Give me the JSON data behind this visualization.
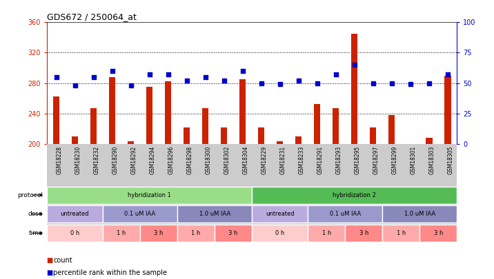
{
  "title": "GDS672 / 250064_at",
  "samples": [
    "GSM18228",
    "GSM18230",
    "GSM18232",
    "GSM18290",
    "GSM18292",
    "GSM18294",
    "GSM18296",
    "GSM18298",
    "GSM18300",
    "GSM18302",
    "GSM18304",
    "GSM18229",
    "GSM18231",
    "GSM18233",
    "GSM18291",
    "GSM18293",
    "GSM18295",
    "GSM18297",
    "GSM18299",
    "GSM18301",
    "GSM18303",
    "GSM18305"
  ],
  "counts": [
    262,
    210,
    247,
    288,
    203,
    275,
    282,
    222,
    247,
    222,
    285,
    222,
    203,
    210,
    252,
    247,
    345,
    222,
    238,
    200,
    208,
    290
  ],
  "percentile": [
    55,
    48,
    55,
    60,
    48,
    57,
    57,
    52,
    55,
    52,
    60,
    50,
    49,
    52,
    50,
    57,
    65,
    50,
    50,
    49,
    50,
    57
  ],
  "ylim_left": [
    200,
    360
  ],
  "ylim_right": [
    0,
    100
  ],
  "yticks_left": [
    200,
    240,
    280,
    320,
    360
  ],
  "yticks_right": [
    0,
    25,
    50,
    75,
    100
  ],
  "grid_values": [
    240,
    280,
    320
  ],
  "bar_color": "#cc2200",
  "dot_color": "#0000cc",
  "bar_bottom": 200,
  "protocol_groups": [
    {
      "label": "hybridization 1",
      "start": 0,
      "end": 11,
      "color": "#99dd88"
    },
    {
      "label": "hybridization 2",
      "start": 11,
      "end": 22,
      "color": "#55bb55"
    }
  ],
  "dose_groups": [
    {
      "label": "untreated",
      "start": 0,
      "end": 3,
      "color": "#bbaadd"
    },
    {
      "label": "0.1 uM IAA",
      "start": 3,
      "end": 7,
      "color": "#9999cc"
    },
    {
      "label": "1.0 uM IAA",
      "start": 7,
      "end": 11,
      "color": "#8888bb"
    },
    {
      "label": "untreated",
      "start": 11,
      "end": 14,
      "color": "#bbaadd"
    },
    {
      "label": "0.1 uM IAA",
      "start": 14,
      "end": 18,
      "color": "#9999cc"
    },
    {
      "label": "1.0 uM IAA",
      "start": 18,
      "end": 22,
      "color": "#8888bb"
    }
  ],
  "time_groups": [
    {
      "label": "0 h",
      "start": 0,
      "end": 3,
      "color": "#ffcccc"
    },
    {
      "label": "1 h",
      "start": 3,
      "end": 5,
      "color": "#ffaaaa"
    },
    {
      "label": "3 h",
      "start": 5,
      "end": 7,
      "color": "#ff8888"
    },
    {
      "label": "1 h",
      "start": 7,
      "end": 9,
      "color": "#ffaaaa"
    },
    {
      "label": "3 h",
      "start": 9,
      "end": 11,
      "color": "#ff8888"
    },
    {
      "label": "0 h",
      "start": 11,
      "end": 14,
      "color": "#ffcccc"
    },
    {
      "label": "1 h",
      "start": 14,
      "end": 16,
      "color": "#ffaaaa"
    },
    {
      "label": "3 h",
      "start": 16,
      "end": 18,
      "color": "#ff8888"
    },
    {
      "label": "1 h",
      "start": 18,
      "end": 20,
      "color": "#ffaaaa"
    },
    {
      "label": "3 h",
      "start": 20,
      "end": 22,
      "color": "#ff8888"
    }
  ],
  "legend_count_color": "#cc2200",
  "legend_dot_color": "#0000cc",
  "background_color": "#ffffff",
  "axis_label_color_left": "#cc2200",
  "axis_label_color_right": "#0000cc",
  "xtick_bg": "#cccccc"
}
